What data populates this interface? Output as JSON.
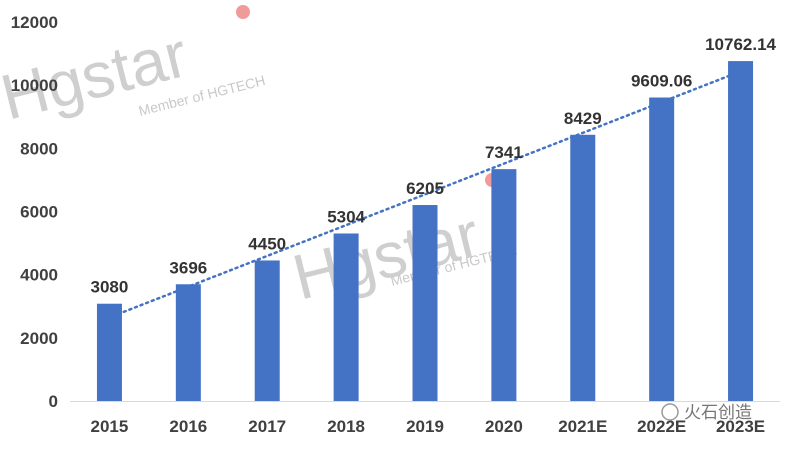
{
  "chart_data": {
    "type": "bar",
    "categories": [
      "2015",
      "2016",
      "2017",
      "2018",
      "2019",
      "2020",
      "2021E",
      "2022E",
      "2023E"
    ],
    "values": [
      3080,
      3696,
      4450,
      5304,
      6205,
      7341,
      8429,
      9609.06,
      10762.14
    ],
    "value_labels": [
      "3080",
      "3696",
      "4450",
      "5304",
      "6205",
      "7341",
      "8429",
      "9609.06",
      "10762.14"
    ],
    "ylim": [
      0,
      12000
    ],
    "yticks": [
      0,
      2000,
      4000,
      6000,
      8000,
      10000,
      12000
    ],
    "trendline": true,
    "grid": false,
    "legend": "none"
  },
  "colors": {
    "bar": "#4472c4",
    "trend": "#4472c4",
    "axis": "#d9d9d9"
  },
  "watermark": {
    "brand": "Hgstar",
    "tagline": "Member of HGTECH",
    "source": "火石创造"
  }
}
